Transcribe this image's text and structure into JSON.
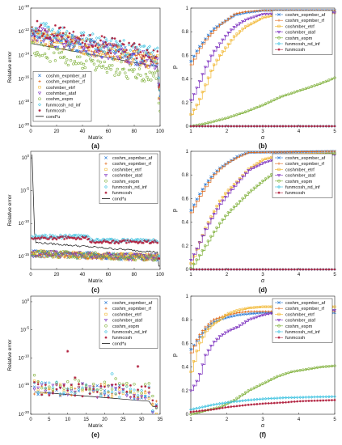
{
  "panel_labels": [
    "(a)",
    "(b)",
    "(c)",
    "(d)",
    "(e)",
    "(f)"
  ],
  "legend_methods": [
    "coshm_expmber_af",
    "coshm_expmber_rf",
    "coshmber_etrf",
    "coshmber_ataf",
    "coshm_expm",
    "funmcosh_nd_inf",
    "funmcosh",
    "cond*u"
  ],
  "colors": {
    "expmber_af": "#2b7bd6",
    "expmber_rf": "#e06a1b",
    "etrf": "#f1b52b",
    "ataf": "#7b2fbe",
    "expm": "#7fb03a",
    "nd_inf": "#3cc2e0",
    "funmcosh": "#b1203e",
    "cond": "#111111"
  },
  "chart_data": [
    {
      "panel": "(a)",
      "type": "scatter",
      "scale_y": "log",
      "xlabel": "Matrix",
      "ylabel": "Relative error",
      "xlim": [
        0,
        100
      ],
      "ylim_exp": [
        -20,
        -10
      ],
      "xticks": [
        0,
        20,
        40,
        60,
        80,
        100
      ],
      "ytick_labels": [
        "10^-20",
        "10^-18",
        "10^-16",
        "10^-14",
        "10^-12",
        "10^-10"
      ],
      "n": 100,
      "x_start": 1,
      "y_start_exp": -12.2,
      "y_end_exp": -14.6,
      "spread": 0.7,
      "cond": {
        "start_exp": -13.0,
        "end_exp": -15.0,
        "drop_exp": -17.0
      },
      "legend_pos": "lower-left",
      "legend": [
        "coshm_expmber_af",
        "coshm_expmber_rf",
        "coshmber_etrf",
        "coshmber_ataf",
        "coshm_expm",
        "funmcosh_nd_inf",
        "funmcosh",
        "cond*u"
      ]
    },
    {
      "panel": "(b)",
      "type": "line",
      "xlabel": "α",
      "ylabel": "p",
      "xlim": [
        1,
        5
      ],
      "ylim": [
        0,
        1
      ],
      "xticks": [
        1,
        2,
        3,
        4,
        5
      ],
      "yticks": [
        0,
        0.2,
        0.4,
        0.6,
        0.8,
        1
      ],
      "legend_pos": "top-right",
      "legend": [
        "coshm_expmber_af",
        "coshm_expmber_rf",
        "coshmber_etrf",
        "coshmber_ataf",
        "coshm_expm",
        "funmcosh_nd_inf",
        "funmcosh"
      ],
      "series": [
        {
          "name": "coshm_expmber_af",
          "color": "#2b7bd6",
          "points": [
            [
              1,
              0.55
            ],
            [
              1.2,
              0.66
            ],
            [
              1.4,
              0.74
            ],
            [
              1.6,
              0.82
            ],
            [
              1.8,
              0.86
            ],
            [
              2,
              0.9
            ],
            [
              2.2,
              0.94
            ],
            [
              2.5,
              0.96
            ],
            [
              3,
              0.98
            ],
            [
              5,
              0.98
            ]
          ]
        },
        {
          "name": "coshm_expmber_rf",
          "color": "#e06a1b",
          "points": [
            [
              1,
              0.52
            ],
            [
              1.2,
              0.64
            ],
            [
              1.4,
              0.73
            ],
            [
              1.6,
              0.8
            ],
            [
              1.8,
              0.86
            ],
            [
              2,
              0.9
            ],
            [
              2.2,
              0.95
            ],
            [
              2.5,
              0.97
            ],
            [
              3,
              0.98
            ],
            [
              5,
              0.98
            ]
          ]
        },
        {
          "name": "coshmber_etrf",
          "color": "#f1b52b",
          "points": [
            [
              1,
              0.1
            ],
            [
              1.2,
              0.2
            ],
            [
              1.4,
              0.35
            ],
            [
              1.6,
              0.5
            ],
            [
              1.8,
              0.6
            ],
            [
              2,
              0.68
            ],
            [
              2.2,
              0.76
            ],
            [
              2.5,
              0.84
            ],
            [
              3,
              0.92
            ],
            [
              3.5,
              0.95
            ],
            [
              5,
              0.96
            ]
          ]
        },
        {
          "name": "coshmber_ataf",
          "color": "#7b2fbe",
          "points": [
            [
              1,
              0.22
            ],
            [
              1.2,
              0.35
            ],
            [
              1.4,
              0.5
            ],
            [
              1.6,
              0.62
            ],
            [
              1.8,
              0.7
            ],
            [
              2,
              0.78
            ],
            [
              2.2,
              0.84
            ],
            [
              2.5,
              0.9
            ],
            [
              3,
              0.95
            ],
            [
              5,
              0.96
            ]
          ]
        },
        {
          "name": "coshm_expm",
          "color": "#7fb03a",
          "points": [
            [
              1,
              0
            ],
            [
              1.2,
              0.01
            ],
            [
              1.5,
              0.03
            ],
            [
              2,
              0.07
            ],
            [
              2.5,
              0.12
            ],
            [
              3,
              0.18
            ],
            [
              3.5,
              0.25
            ],
            [
              4,
              0.3
            ],
            [
              4.5,
              0.35
            ],
            [
              5,
              0.41
            ]
          ]
        },
        {
          "name": "funmcosh_nd_inf",
          "color": "#3cc2e0",
          "points": [
            [
              1,
              0
            ],
            [
              5,
              0
            ]
          ]
        },
        {
          "name": "funmcosh",
          "color": "#b1203e",
          "points": [
            [
              1,
              0
            ],
            [
              5,
              0
            ]
          ]
        }
      ]
    },
    {
      "panel": "(c)",
      "type": "scatter",
      "scale_y": "log",
      "xlabel": "Matrix",
      "ylabel": "Relative error",
      "xlim": [
        0,
        100
      ],
      "ylim_exp": [
        -17,
        1
      ],
      "xticks": [
        0,
        20,
        40,
        60,
        80,
        100
      ],
      "ytick_labels": [
        "10^-15",
        "10^-10",
        "10^-5",
        "10^0"
      ],
      "n": 100,
      "x_start": 1,
      "y_start_exp": -14.6,
      "y_end_exp": -15.2,
      "spread": 0.5,
      "cond": {
        "start_exp": 0.5,
        "end_exp": -14.4,
        "drop_exp": -16.5
      },
      "legend_pos": "top-right",
      "legend": [
        "coshm_expmber_af",
        "coshm_expmber_rf",
        "coshmber_etrf",
        "coshmber_ataf",
        "coshm_expm",
        "funmcosh_nd_inf",
        "funmcosh",
        "cond*u"
      ]
    },
    {
      "panel": "(d)",
      "type": "line",
      "xlabel": "α",
      "ylabel": "p",
      "xlim": [
        1,
        5
      ],
      "ylim": [
        0,
        1
      ],
      "xticks": [
        1,
        2,
        3,
        4,
        5
      ],
      "yticks": [
        0,
        0.2,
        0.4,
        0.6,
        0.8,
        1
      ],
      "legend_pos": "top-right",
      "legend": [
        "coshm_expmber_af",
        "coshm_expmber_rf",
        "coshmber_etrf",
        "coshmber_ataf",
        "coshm_expm",
        "funmcosh_nd_inf",
        "funmcosh"
      ],
      "series": [
        {
          "name": "coshm_expmber_af",
          "color": "#2b7bd6",
          "points": [
            [
              1,
              0.5
            ],
            [
              1.2,
              0.62
            ],
            [
              1.4,
              0.72
            ],
            [
              1.6,
              0.8
            ],
            [
              1.8,
              0.86
            ],
            [
              2,
              0.9
            ],
            [
              2.3,
              0.96
            ],
            [
              2.6,
              0.99
            ],
            [
              5,
              1
            ]
          ]
        },
        {
          "name": "coshm_expmber_rf",
          "color": "#e06a1b",
          "points": [
            [
              1,
              0.48
            ],
            [
              1.2,
              0.6
            ],
            [
              1.4,
              0.7
            ],
            [
              1.6,
              0.79
            ],
            [
              1.8,
              0.85
            ],
            [
              2,
              0.9
            ],
            [
              2.3,
              0.95
            ],
            [
              2.6,
              0.99
            ],
            [
              5,
              1
            ]
          ]
        },
        {
          "name": "coshmber_etrf",
          "color": "#f1b52b",
          "points": [
            [
              1,
              0.05
            ],
            [
              1.2,
              0.2
            ],
            [
              1.4,
              0.35
            ],
            [
              1.6,
              0.47
            ],
            [
              1.8,
              0.58
            ],
            [
              2,
              0.66
            ],
            [
              2.3,
              0.75
            ],
            [
              2.6,
              0.85
            ],
            [
              3,
              0.93
            ],
            [
              3.5,
              0.97
            ],
            [
              5,
              0.98
            ]
          ]
        },
        {
          "name": "coshmber_ataf",
          "color": "#7b2fbe",
          "points": [
            [
              1,
              0.08
            ],
            [
              1.2,
              0.2
            ],
            [
              1.4,
              0.34
            ],
            [
              1.6,
              0.45
            ],
            [
              1.8,
              0.55
            ],
            [
              2,
              0.63
            ],
            [
              2.3,
              0.74
            ],
            [
              2.6,
              0.84
            ],
            [
              3,
              0.9
            ],
            [
              3.5,
              0.95
            ],
            [
              5,
              0.97
            ]
          ]
        },
        {
          "name": "coshm_expm",
          "color": "#7fb03a",
          "points": [
            [
              1,
              0.01
            ],
            [
              1.2,
              0.1
            ],
            [
              1.4,
              0.2
            ],
            [
              1.6,
              0.3
            ],
            [
              1.8,
              0.39
            ],
            [
              2,
              0.47
            ],
            [
              2.3,
              0.56
            ],
            [
              2.6,
              0.65
            ],
            [
              3,
              0.75
            ],
            [
              3.5,
              0.86
            ],
            [
              4,
              0.93
            ],
            [
              4.5,
              0.97
            ],
            [
              5,
              0.98
            ]
          ]
        },
        {
          "name": "funmcosh_nd_inf",
          "color": "#3cc2e0",
          "points": [
            [
              1,
              0
            ],
            [
              5,
              0
            ]
          ]
        },
        {
          "name": "funmcosh",
          "color": "#b1203e",
          "points": [
            [
              1,
              0
            ],
            [
              5,
              0
            ]
          ]
        }
      ]
    },
    {
      "panel": "(e)",
      "type": "scatter",
      "scale_y": "log",
      "xlabel": "Matrix",
      "ylabel": "Relative error",
      "xlim": [
        0,
        35
      ],
      "ylim_exp": [
        -20,
        1
      ],
      "xticks": [
        0,
        5,
        10,
        15,
        20,
        25,
        30,
        35
      ],
      "ytick_labels": [
        "10^-20",
        "10^-15",
        "10^-10",
        "10^-5",
        "10^0"
      ],
      "n": 34,
      "x_start": 1,
      "y_start_exp": -15.3,
      "y_end_exp": -16.2,
      "spread": 1.0,
      "cond": {
        "start_exp": -16.0,
        "end_exp": -17.8,
        "drop_exp": -18.6
      },
      "outliers": [
        [
          10,
          -8.8
        ],
        [
          21,
          -2.0
        ],
        [
          24,
          -4.1
        ],
        [
          31,
          -0.3
        ],
        [
          12,
          -13.5
        ],
        [
          22,
          -12.8
        ],
        [
          29,
          -11.5
        ]
      ],
      "legend_pos": "top-right",
      "legend": [
        "coshm_expmber_af",
        "coshm_expmber_rf",
        "coshmber_etrf",
        "coshmber_ataf",
        "coshm_expm",
        "funmcosh_nd_inf",
        "funmcosh",
        "cond*u"
      ]
    },
    {
      "panel": "(f)",
      "type": "line",
      "xlabel": "α",
      "ylabel": "p",
      "xlim": [
        1,
        5
      ],
      "ylim": [
        0,
        1
      ],
      "xticks": [
        1,
        2,
        3,
        4,
        5
      ],
      "yticks": [
        0,
        0.2,
        0.4,
        0.6,
        0.8,
        1
      ],
      "legend_pos": "top-right",
      "legend": [
        "coshm_expmber_af",
        "coshm_expmber_rf",
        "coshmber_etrf",
        "coshmber_ataf",
        "coshm_expm",
        "funmcosh_nd_inf",
        "funmcosh"
      ],
      "series": [
        {
          "name": "coshm_expmber_af",
          "color": "#2b7bd6",
          "points": [
            [
              1,
              0.55
            ],
            [
              1.2,
              0.64
            ],
            [
              1.4,
              0.72
            ],
            [
              1.6,
              0.78
            ],
            [
              1.8,
              0.8
            ],
            [
              2,
              0.82
            ],
            [
              2.3,
              0.84
            ],
            [
              2.6,
              0.85
            ],
            [
              3,
              0.86
            ],
            [
              5,
              0.86
            ]
          ]
        },
        {
          "name": "coshm_expmber_rf",
          "color": "#e06a1b",
          "points": [
            [
              1,
              0.52
            ],
            [
              1.2,
              0.66
            ],
            [
              1.4,
              0.74
            ],
            [
              1.6,
              0.8
            ],
            [
              1.8,
              0.82
            ],
            [
              2,
              0.84
            ],
            [
              2.3,
              0.86
            ],
            [
              2.6,
              0.87
            ],
            [
              3,
              0.87
            ],
            [
              5,
              0.87
            ]
          ]
        },
        {
          "name": "coshmber_etrf",
          "color": "#f1b52b",
          "points": [
            [
              1,
              0.36
            ],
            [
              1.2,
              0.58
            ],
            [
              1.4,
              0.7
            ],
            [
              1.6,
              0.76
            ],
            [
              1.8,
              0.8
            ],
            [
              2,
              0.85
            ],
            [
              2.3,
              0.88
            ],
            [
              2.6,
              0.9
            ],
            [
              3,
              0.91
            ],
            [
              5,
              0.91
            ]
          ]
        },
        {
          "name": "coshmber_ataf",
          "color": "#7b2fbe",
          "points": [
            [
              1,
              0.2
            ],
            [
              1.2,
              0.3
            ],
            [
              1.4,
              0.5
            ],
            [
              1.6,
              0.6
            ],
            [
              1.8,
              0.66
            ],
            [
              2,
              0.7
            ],
            [
              2.3,
              0.74
            ],
            [
              2.6,
              0.8
            ],
            [
              3,
              0.84
            ],
            [
              3.5,
              0.87
            ],
            [
              5,
              0.88
            ]
          ]
        },
        {
          "name": "coshm_expm",
          "color": "#7fb03a",
          "points": [
            [
              1,
              0
            ],
            [
              1.4,
              0.03
            ],
            [
              1.8,
              0.06
            ],
            [
              2.2,
              0.12
            ],
            [
              2.6,
              0.2
            ],
            [
              3,
              0.26
            ],
            [
              3.4,
              0.32
            ],
            [
              3.8,
              0.36
            ],
            [
              4.2,
              0.38
            ],
            [
              4.6,
              0.4
            ],
            [
              5,
              0.41
            ]
          ]
        },
        {
          "name": "funmcosh_nd_inf",
          "color": "#3cc2e0",
          "points": [
            [
              1,
              0.04
            ],
            [
              1.6,
              0.08
            ],
            [
              2,
              0.1
            ],
            [
              2.6,
              0.12
            ],
            [
              3,
              0.13
            ],
            [
              3.6,
              0.14
            ],
            [
              5,
              0.15
            ]
          ]
        },
        {
          "name": "funmcosh",
          "color": "#b1203e",
          "points": [
            [
              1,
              0.02
            ],
            [
              1.6,
              0.04
            ],
            [
              2,
              0.06
            ],
            [
              2.6,
              0.08
            ],
            [
              3,
              0.09
            ],
            [
              3.6,
              0.1
            ],
            [
              4,
              0.11
            ],
            [
              5,
              0.12
            ]
          ]
        }
      ]
    }
  ]
}
